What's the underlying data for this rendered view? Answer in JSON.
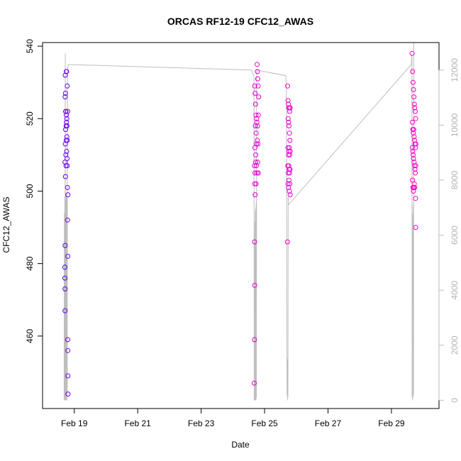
{
  "chart_data": {
    "type": "scatter",
    "title": "ORCAS RF12-19 CFC12_AWAS",
    "xlabel": "Date",
    "ylabel": "CFC12_AWAS",
    "x_type": "date",
    "xlim": [
      "2016-02-18T00:00",
      "2016-03-01T12:00"
    ],
    "ylim": [
      440,
      541
    ],
    "x_ticks": [
      {
        "date": "2016-02-19",
        "label": "Feb 19"
      },
      {
        "date": "2016-02-21",
        "label": "Feb 21"
      },
      {
        "date": "2016-02-23",
        "label": "Feb 23"
      },
      {
        "date": "2016-02-25",
        "label": "Feb 25"
      },
      {
        "date": "2016-02-27",
        "label": "Feb 27"
      },
      {
        "date": "2016-02-29",
        "label": "Feb 29"
      }
    ],
    "y_ticks": [
      460,
      480,
      500,
      520,
      540
    ],
    "y2": {
      "ylim": [
        -300,
        13000
      ],
      "ticks": [
        0,
        2000,
        4000,
        6000,
        8000,
        10000,
        12000
      ],
      "color": "#bebebe"
    },
    "grid": false,
    "legend": "none",
    "color_gradient": [
      "#3b00ff",
      "#ff00c8"
    ],
    "series": [
      {
        "role": "scatter",
        "points": [
          [
            "2016-02-18T17:10",
            532
          ],
          [
            "2016-02-18T17:20",
            527
          ],
          [
            "2016-02-18T17:05",
            526
          ],
          [
            "2016-02-18T17:30",
            522
          ],
          [
            "2016-02-18T17:40",
            522
          ],
          [
            "2016-02-18T18:00",
            533
          ],
          [
            "2016-02-18T18:10",
            533
          ],
          [
            "2016-02-18T17:25",
            517
          ],
          [
            "2016-02-18T17:50",
            518
          ],
          [
            "2016-02-18T18:20",
            520
          ],
          [
            "2016-02-18T18:05",
            519
          ],
          [
            "2016-02-18T18:30",
            518
          ],
          [
            "2016-02-18T17:15",
            513
          ],
          [
            "2016-02-18T17:35",
            510
          ],
          [
            "2016-02-18T17:55",
            514
          ],
          [
            "2016-02-18T18:15",
            511
          ],
          [
            "2016-02-18T18:25",
            515
          ],
          [
            "2016-02-18T18:40",
            514
          ],
          [
            "2016-02-18T17:00",
            508
          ],
          [
            "2016-02-18T17:45",
            507
          ],
          [
            "2016-02-18T18:35",
            509
          ],
          [
            "2016-02-18T18:45",
            507
          ],
          [
            "2016-02-18T18:50",
            501
          ],
          [
            "2016-02-18T17:20",
            504
          ],
          [
            "2016-02-18T19:00",
            522
          ],
          [
            "2016-02-18T19:10",
            499
          ],
          [
            "2016-02-18T18:55",
            492
          ],
          [
            "2016-02-18T17:05",
            485
          ],
          [
            "2016-02-18T19:05",
            482
          ],
          [
            "2016-02-18T16:50",
            479
          ],
          [
            "2016-02-18T16:55",
            476
          ],
          [
            "2016-02-18T17:00",
            473
          ],
          [
            "2016-02-18T17:02",
            467
          ],
          [
            "2016-02-18T19:00",
            459
          ],
          [
            "2016-02-18T19:05",
            456
          ],
          [
            "2016-02-18T19:10",
            449
          ],
          [
            "2016-02-18T19:15",
            444
          ],
          [
            "2016-02-18T18:40",
            529
          ],
          [
            "2016-02-18T18:00",
            521
          ],
          [
            "2016-02-24T16:30",
            529
          ],
          [
            "2016-02-24T16:50",
            527
          ],
          [
            "2016-02-24T17:10",
            524
          ],
          [
            "2016-02-24T17:30",
            521
          ],
          [
            "2016-02-24T18:00",
            520
          ],
          [
            "2016-02-24T18:20",
            535
          ],
          [
            "2016-02-24T18:35",
            533
          ],
          [
            "2016-02-24T18:50",
            531
          ],
          [
            "2016-02-24T19:10",
            529
          ],
          [
            "2016-02-24T19:30",
            526
          ],
          [
            "2016-02-24T17:00",
            518
          ],
          [
            "2016-02-24T17:40",
            516
          ],
          [
            "2016-02-24T18:10",
            519
          ],
          [
            "2016-02-24T18:40",
            518
          ],
          [
            "2016-02-24T19:20",
            521
          ],
          [
            "2016-02-24T16:40",
            512
          ],
          [
            "2016-02-24T17:20",
            510
          ],
          [
            "2016-02-24T17:50",
            513
          ],
          [
            "2016-02-24T18:30",
            514
          ],
          [
            "2016-02-24T19:00",
            513
          ],
          [
            "2016-02-24T16:20",
            507
          ],
          [
            "2016-02-24T16:45",
            505
          ],
          [
            "2016-02-24T17:15",
            508
          ],
          [
            "2016-02-24T17:45",
            507
          ],
          [
            "2016-02-24T18:15",
            505
          ],
          [
            "2016-02-24T18:45",
            508
          ],
          [
            "2016-02-24T19:15",
            505
          ],
          [
            "2016-02-24T16:35",
            502
          ],
          [
            "2016-02-24T16:55",
            499
          ],
          [
            "2016-02-24T17:35",
            502
          ],
          [
            "2016-02-24T16:25",
            486
          ],
          [
            "2016-02-24T16:30",
            474
          ],
          [
            "2016-02-24T16:20",
            459
          ],
          [
            "2016-02-24T16:10",
            447
          ],
          [
            "2016-02-25T17:30",
            529
          ],
          [
            "2016-02-25T17:45",
            525
          ],
          [
            "2016-02-25T18:00",
            524
          ],
          [
            "2016-02-25T18:20",
            523
          ],
          [
            "2016-02-25T18:40",
            523
          ],
          [
            "2016-02-25T19:00",
            522
          ],
          [
            "2016-02-25T19:20",
            523
          ],
          [
            "2016-02-25T17:50",
            520
          ],
          [
            "2016-02-25T18:10",
            519
          ],
          [
            "2016-02-25T18:30",
            518
          ],
          [
            "2016-02-25T18:50",
            516
          ],
          [
            "2016-02-25T19:10",
            514
          ],
          [
            "2016-02-25T17:40",
            512
          ],
          [
            "2016-02-25T18:05",
            510
          ],
          [
            "2016-02-25T18:25",
            511
          ],
          [
            "2016-02-25T18:45",
            512
          ],
          [
            "2016-02-25T19:05",
            510
          ],
          [
            "2016-02-25T19:25",
            511
          ],
          [
            "2016-02-25T17:35",
            507
          ],
          [
            "2016-02-25T17:55",
            505
          ],
          [
            "2016-02-25T18:15",
            507
          ],
          [
            "2016-02-25T18:35",
            506
          ],
          [
            "2016-02-25T18:55",
            505
          ],
          [
            "2016-02-25T19:15",
            506
          ],
          [
            "2016-02-25T17:45",
            502
          ],
          [
            "2016-02-25T18:05",
            501
          ],
          [
            "2016-02-25T18:25",
            503
          ],
          [
            "2016-02-25T18:45",
            500
          ],
          [
            "2016-02-25T19:05",
            502
          ],
          [
            "2016-02-25T19:25",
            499
          ],
          [
            "2016-02-25T17:20",
            486
          ],
          [
            "2016-02-29T15:40",
            538
          ],
          [
            "2016-02-29T16:00",
            533
          ],
          [
            "2016-02-29T16:20",
            530
          ],
          [
            "2016-02-29T16:40",
            528
          ],
          [
            "2016-02-29T17:00",
            526
          ],
          [
            "2016-02-29T17:20",
            524
          ],
          [
            "2016-02-29T17:40",
            523
          ],
          [
            "2016-02-29T18:00",
            522
          ],
          [
            "2016-02-29T18:20",
            520
          ],
          [
            "2016-02-29T15:50",
            519
          ],
          [
            "2016-02-29T16:10",
            517
          ],
          [
            "2016-02-29T16:30",
            516
          ],
          [
            "2016-02-29T16:50",
            517
          ],
          [
            "2016-02-29T17:10",
            515
          ],
          [
            "2016-02-29T17:30",
            514
          ],
          [
            "2016-02-29T17:50",
            513
          ],
          [
            "2016-02-29T18:10",
            512
          ],
          [
            "2016-02-29T18:30",
            513
          ],
          [
            "2016-02-29T15:45",
            512
          ],
          [
            "2016-02-29T16:05",
            511
          ],
          [
            "2016-02-29T16:25",
            510
          ],
          [
            "2016-02-29T16:45",
            509
          ],
          [
            "2016-02-29T17:05",
            508
          ],
          [
            "2016-02-29T17:25",
            507
          ],
          [
            "2016-02-29T17:45",
            506
          ],
          [
            "2016-02-29T18:05",
            505
          ],
          [
            "2016-02-29T18:25",
            507
          ],
          [
            "2016-02-29T15:55",
            503
          ],
          [
            "2016-02-29T16:15",
            501
          ],
          [
            "2016-02-29T16:35",
            500
          ],
          [
            "2016-02-29T16:55",
            501
          ],
          [
            "2016-02-29T17:15",
            502
          ],
          [
            "2016-02-29T17:35",
            501
          ],
          [
            "2016-02-29T18:15",
            498
          ],
          [
            "2016-02-29T18:20",
            490
          ]
        ]
      },
      {
        "role": "line-right-axis",
        "points": [
          [
            "2016-02-18T16:20",
            0
          ],
          [
            "2016-02-18T16:30",
            6800
          ],
          [
            "2016-02-18T16:40",
            0
          ],
          [
            "2016-02-18T16:50",
            7400
          ],
          [
            "2016-02-18T17:00",
            100
          ],
          [
            "2016-02-18T17:10",
            12600
          ],
          [
            "2016-02-18T17:20",
            0
          ],
          [
            "2016-02-18T17:30",
            7200
          ],
          [
            "2016-02-18T17:40",
            0
          ],
          [
            "2016-02-18T17:50",
            7500
          ],
          [
            "2016-02-18T18:00",
            0
          ],
          [
            "2016-02-18T18:10",
            7400
          ],
          [
            "2016-02-18T18:20",
            0
          ],
          [
            "2016-02-18T18:30",
            7200
          ],
          [
            "2016-02-18T18:40",
            200
          ],
          [
            "2016-02-18T18:50",
            11500
          ],
          [
            "2016-02-18T19:00",
            12100
          ],
          [
            "2016-02-18T19:30",
            12200
          ],
          [
            "2016-02-24T14:00",
            12000
          ],
          [
            "2016-02-24T16:00",
            11800
          ],
          [
            "2016-02-24T16:10",
            0
          ],
          [
            "2016-02-24T16:20",
            5800
          ],
          [
            "2016-02-24T16:30",
            0
          ],
          [
            "2016-02-24T16:40",
            6500
          ],
          [
            "2016-02-24T16:50",
            0
          ],
          [
            "2016-02-24T17:00",
            6900
          ],
          [
            "2016-02-24T17:10",
            0
          ],
          [
            "2016-02-24T17:20",
            7000
          ],
          [
            "2016-02-24T17:30",
            0
          ],
          [
            "2016-02-24T17:40",
            7200
          ],
          [
            "2016-02-24T17:50",
            100
          ],
          [
            "2016-02-24T18:00",
            12000
          ],
          [
            "2016-02-25T16:00",
            11800
          ],
          [
            "2016-02-25T16:30",
            11400
          ],
          [
            "2016-02-25T17:00",
            200
          ],
          [
            "2016-02-25T17:10",
            1400
          ],
          [
            "2016-02-25T17:20",
            0
          ],
          [
            "2016-02-25T17:30",
            1500
          ],
          [
            "2016-02-25T17:40",
            100
          ],
          [
            "2016-02-25T17:50",
            7400
          ],
          [
            "2016-02-25T18:00",
            7100
          ],
          [
            "2016-02-29T15:00",
            12200
          ],
          [
            "2016-02-29T15:30",
            12600
          ],
          [
            "2016-02-29T15:40",
            100
          ],
          [
            "2016-02-29T15:50",
            6200
          ],
          [
            "2016-02-29T16:00",
            0
          ],
          [
            "2016-02-29T16:10",
            6800
          ],
          [
            "2016-02-29T16:20",
            100
          ],
          [
            "2016-02-29T16:30",
            7100
          ],
          [
            "2016-02-29T16:40",
            200
          ],
          [
            "2016-02-29T16:50",
            12800
          ],
          [
            "2016-02-29T17:00",
            13000
          ]
        ]
      }
    ]
  }
}
